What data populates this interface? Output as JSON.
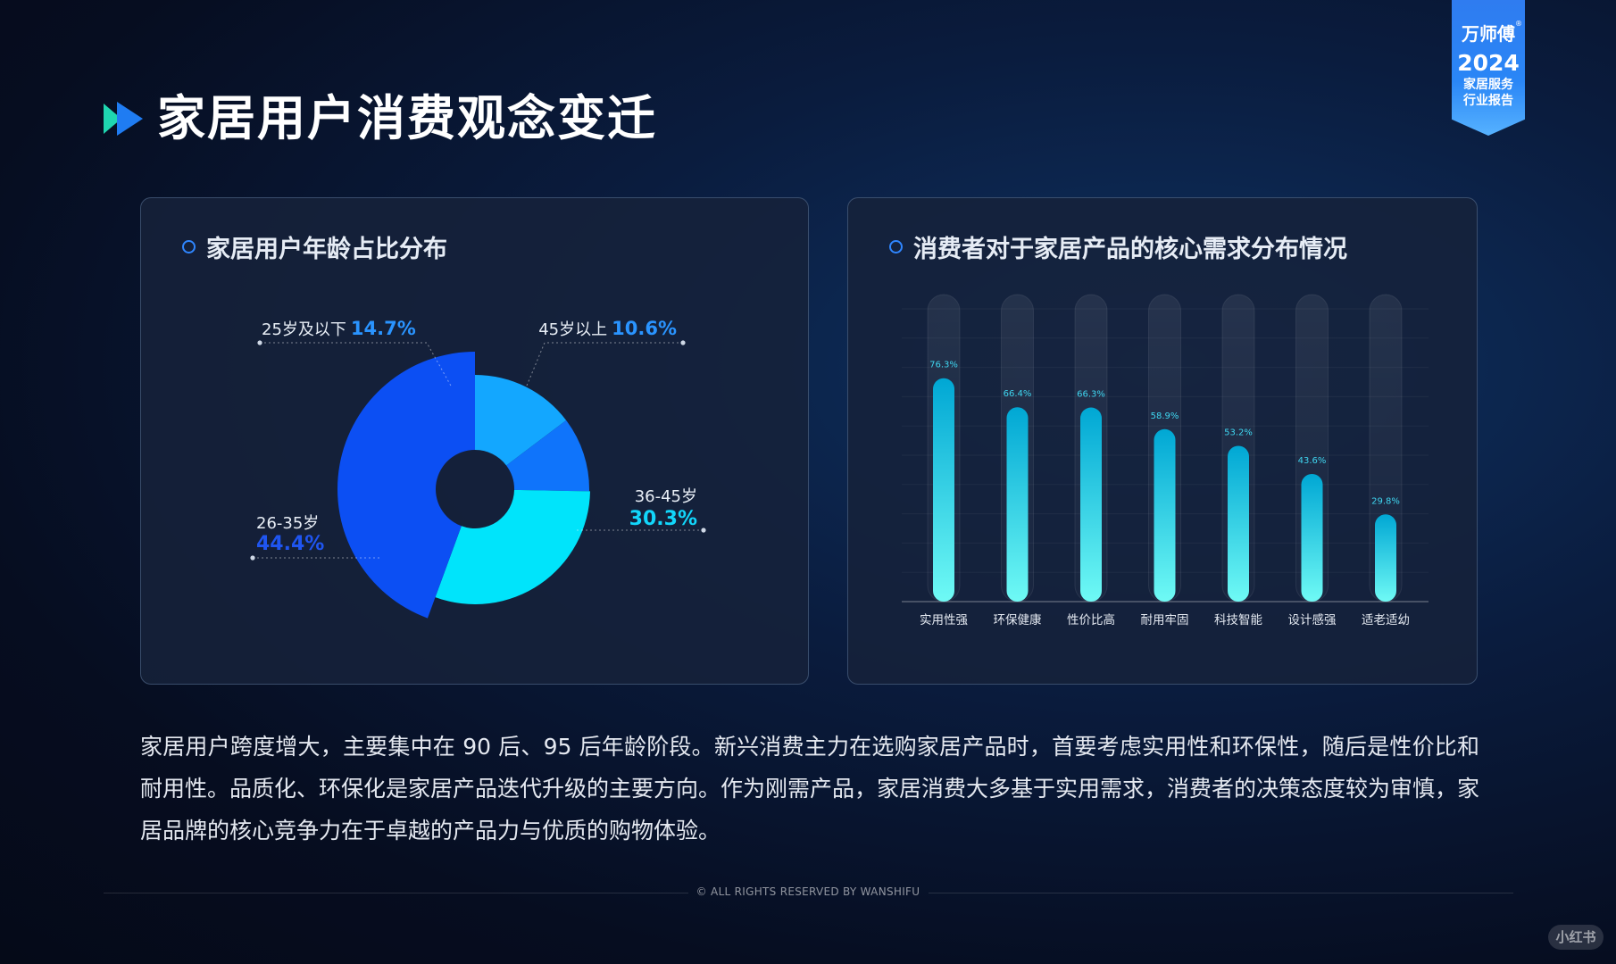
{
  "header": {
    "title": "家居用户消费观念变迁"
  },
  "badge": {
    "brand": "万师傅",
    "registered_mark": "®",
    "year": "2024",
    "line1": "家居服务",
    "line2": "行业报告"
  },
  "panels": {
    "left_title": "家居用户年龄占比分布",
    "right_title": "消费者对于家居产品的核心需求分布情况"
  },
  "colors": {
    "age_25_below": "#13a7ff",
    "age_26_35": "#0c4ff3",
    "age_36_45": "#00e4fb",
    "age_45_above": "#0f74fb",
    "bar_top": "#00a7d4",
    "bar_bottom": "#6ffaf5",
    "label_blue": "#2a94ff",
    "label_cyan": "#12d6fb"
  },
  "chart_data": [
    {
      "type": "pie",
      "title": "家居用户年龄占比分布",
      "categories": [
        "25岁及以下",
        "45岁以上",
        "36-45岁",
        "26-35岁"
      ],
      "values": [
        14.7,
        10.6,
        30.3,
        44.4
      ],
      "value_labels": [
        "14.7%",
        "10.6%",
        "30.3%",
        "44.4%"
      ]
    },
    {
      "type": "bar",
      "title": "消费者对于家居产品的核心需求分布情况",
      "categories": [
        "实用性强",
        "环保健康",
        "性价比高",
        "耐用牢固",
        "科技智能",
        "设计感强",
        "适老适幼"
      ],
      "values": [
        76.3,
        66.4,
        66.3,
        58.9,
        53.2,
        43.6,
        29.8
      ],
      "value_labels": [
        "76.3%",
        "66.4%",
        "66.3%",
        "58.9%",
        "53.2%",
        "43.6%",
        "29.8%"
      ],
      "ylim": [
        0,
        100
      ],
      "grid": true
    }
  ],
  "body": {
    "paragraph": "家居用户跨度增大，主要集中在 90 后、95 后年龄阶段。新兴消费主力在选购家居产品时，首要考虑实用性和环保性，随后是性价比和耐用性。品质化、环保化是家居产品迭代升级的主要方向。作为刚需产品，家居消费大多基于实用需求，消费者的决策态度较为审慎，家居品牌的核心竞争力在于卓越的产品力与优质的购物体验。"
  },
  "footer": {
    "copyright": "© ALL RIGHTS RESERVED BY WANSHIFU"
  },
  "watermark": {
    "text": "小红书"
  }
}
